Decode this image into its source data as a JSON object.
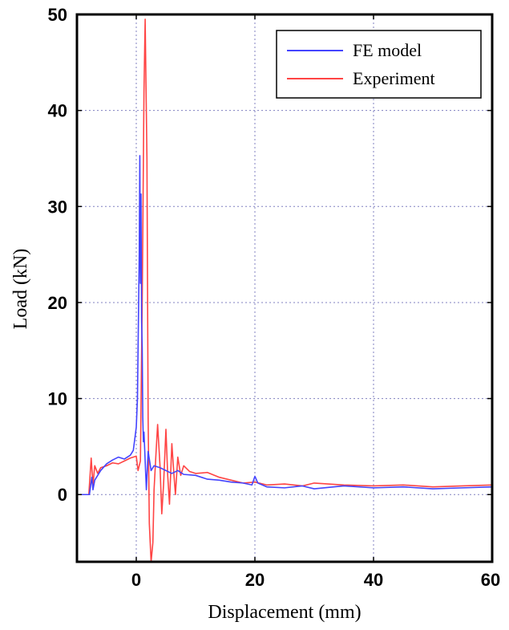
{
  "chart_data": {
    "type": "line",
    "xlabel": "Displacement (mm)",
    "ylabel": "Load (kN)",
    "xlim": [
      -10,
      60
    ],
    "ylim": [
      -7,
      50
    ],
    "xticks": [
      "0",
      "20",
      "40",
      "60"
    ],
    "yticks": [
      "0",
      "10",
      "20",
      "30",
      "40",
      "50"
    ],
    "grid": true,
    "legend_position": "top-right",
    "series": [
      {
        "name": "FE model",
        "color": "#4444ff",
        "x": [
          -10,
          -7.9,
          -7.5,
          -7.3,
          -7.0,
          -6.5,
          -6,
          -5,
          -4,
          -3,
          -2,
          -1,
          -0.5,
          0,
          0.2,
          0.4,
          0.5,
          0.6,
          0.7,
          0.8,
          0.9,
          1.0,
          1.1,
          1.2,
          1.3,
          1.5,
          1.7,
          2.0,
          2.5,
          3,
          4,
          5,
          6,
          7,
          8,
          10,
          12,
          14,
          16,
          18,
          19.5,
          20,
          20.5,
          22,
          25,
          28,
          30,
          35,
          40,
          45,
          50,
          55,
          60
        ],
        "y": [
          0,
          0,
          1.8,
          0.5,
          1.5,
          2.0,
          2.5,
          3.2,
          3.6,
          3.9,
          3.7,
          4.1,
          4.6,
          7.0,
          10.0,
          20.0,
          25.0,
          35.3,
          22.0,
          31.3,
          18.0,
          15.4,
          8.0,
          5.5,
          6.5,
          3.5,
          0.5,
          4.5,
          2.5,
          3.0,
          2.8,
          2.5,
          2.2,
          2.5,
          2.1,
          2.0,
          1.6,
          1.5,
          1.3,
          1.2,
          1.0,
          1.9,
          1.2,
          0.8,
          0.7,
          0.9,
          0.6,
          0.9,
          0.7,
          0.8,
          0.6,
          0.7,
          0.8
        ]
      },
      {
        "name": "Experiment",
        "color": "#ff4444",
        "x": [
          -10,
          -8,
          -7.6,
          -7.3,
          -7.0,
          -6.5,
          -6,
          -5,
          -4,
          -3,
          -2,
          -1,
          0,
          0.3,
          0.7,
          1.0,
          1.3,
          1.5,
          1.8,
          2.0,
          2.2,
          2.5,
          2.8,
          3.0,
          3.3,
          3.6,
          4.0,
          4.3,
          4.6,
          5.0,
          5.3,
          5.6,
          6.0,
          6.3,
          6.6,
          7.0,
          7.5,
          8,
          9,
          10,
          12,
          14,
          16,
          18,
          20,
          22,
          25,
          28,
          30,
          35,
          40,
          45,
          50,
          55,
          60
        ],
        "y": [
          0,
          0,
          3.8,
          1.0,
          3.0,
          2.2,
          2.8,
          3.0,
          3.3,
          3.2,
          3.5,
          3.8,
          4.0,
          2.5,
          3.5,
          20.0,
          42.0,
          49.5,
          35.0,
          8.0,
          -3.0,
          -7.0,
          -5.0,
          0.5,
          4.0,
          7.3,
          3.0,
          -2.0,
          1.0,
          6.8,
          2.0,
          -1.0,
          5.3,
          2.5,
          0.0,
          3.9,
          2.0,
          3.0,
          2.4,
          2.2,
          2.3,
          1.8,
          1.5,
          1.2,
          1.3,
          1.0,
          1.1,
          0.9,
          1.2,
          1.0,
          0.9,
          1.0,
          0.8,
          0.9,
          1.0
        ]
      }
    ]
  }
}
